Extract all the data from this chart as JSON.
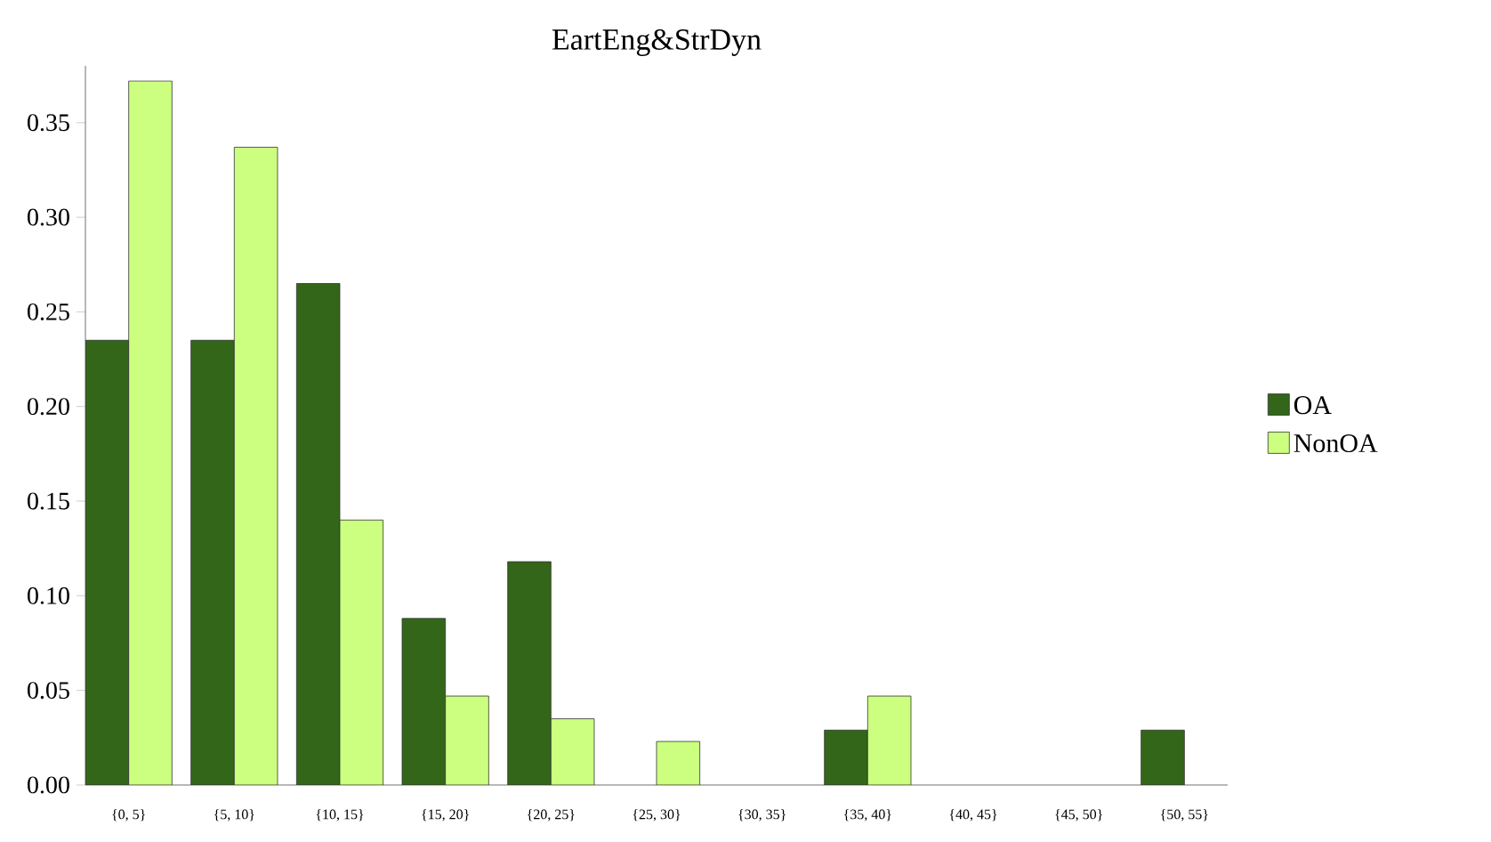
{
  "chart_data": {
    "type": "bar",
    "title": "EartEng&StrDyn",
    "categories": [
      "{0, 5}",
      "{5, 10}",
      "{10, 15}",
      "{15, 20}",
      "{20, 25}",
      "{25, 30}",
      "{30, 35}",
      "{35, 40}",
      "{40, 45}",
      "{45, 50}",
      "{50, 55}"
    ],
    "series": [
      {
        "name": "OA",
        "color": "#336619",
        "values": [
          0.235,
          0.235,
          0.265,
          0.088,
          0.118,
          null,
          null,
          0.029,
          null,
          null,
          0.029
        ]
      },
      {
        "name": "NonOA",
        "color": "#ccff7f",
        "values": [
          0.372,
          0.337,
          0.14,
          0.047,
          0.035,
          0.023,
          null,
          0.047,
          null,
          null,
          null
        ]
      }
    ],
    "ylim": [
      0,
      0.38
    ],
    "yticks": [
      {
        "value": 0,
        "label": "0.00"
      },
      {
        "value": 0.05,
        "label": "0.05"
      },
      {
        "value": 0.1,
        "label": "0.10"
      },
      {
        "value": 0.15,
        "label": "0.15"
      },
      {
        "value": 0.2,
        "label": "0.20"
      },
      {
        "value": 0.25,
        "label": "0.25"
      },
      {
        "value": 0.3,
        "label": "0.30"
      },
      {
        "value": 0.35,
        "label": "0.35"
      }
    ],
    "grid": false,
    "legend": "right"
  }
}
